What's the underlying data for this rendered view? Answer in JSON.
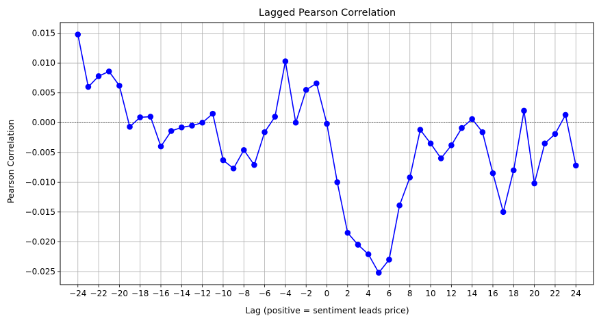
{
  "chart_data": {
    "type": "line",
    "title": "Lagged Pearson Correlation",
    "xlabel": "Lag (positive = sentiment leads price)",
    "ylabel": "Pearson Correlation",
    "xlim": [
      -25.7,
      25.7
    ],
    "ylim": [
      -0.0272,
      0.0168
    ],
    "xticks": [
      -24,
      -22,
      -20,
      -18,
      -16,
      -14,
      -12,
      -10,
      -8,
      -6,
      -4,
      -2,
      0,
      2,
      4,
      6,
      8,
      10,
      12,
      14,
      16,
      18,
      20,
      22,
      24
    ],
    "xtick_labels": [
      "−24",
      "−22",
      "−20",
      "−18",
      "−16",
      "−14",
      "−12",
      "−10",
      "−8",
      "−6",
      "−4",
      "−2",
      "0",
      "2",
      "4",
      "6",
      "8",
      "10",
      "12",
      "14",
      "16",
      "18",
      "20",
      "22",
      "24"
    ],
    "yticks": [
      -0.025,
      -0.02,
      -0.015,
      -0.01,
      -0.005,
      0.0,
      0.005,
      0.01,
      0.015
    ],
    "ytick_labels": [
      "−0.025",
      "−0.020",
      "−0.015",
      "−0.010",
      "−0.005",
      "0.000",
      "0.005",
      "0.010",
      "0.015"
    ],
    "grid": true,
    "reference_line": 0,
    "color": "#0000ff",
    "x": [
      -24,
      -23,
      -22,
      -21,
      -20,
      -19,
      -18,
      -17,
      -16,
      -15,
      -14,
      -13,
      -12,
      -11,
      -10,
      -9,
      -8,
      -7,
      -6,
      -5,
      -4,
      -3,
      -2,
      -1,
      0,
      1,
      2,
      3,
      4,
      5,
      6,
      7,
      8,
      9,
      10,
      11,
      12,
      13,
      14,
      15,
      16,
      17,
      18,
      19,
      20,
      21,
      22,
      23,
      24
    ],
    "y": [
      0.0148,
      0.006,
      0.0078,
      0.0086,
      0.0062,
      -0.0007,
      0.0009,
      0.001,
      -0.004,
      -0.0014,
      -0.0008,
      -0.0005,
      0.0,
      0.0015,
      -0.0063,
      -0.0077,
      -0.0046,
      -0.0071,
      -0.0016,
      0.001,
      0.0103,
      0.0,
      0.0055,
      0.0066,
      -0.0002,
      -0.01,
      -0.0185,
      -0.0205,
      -0.0221,
      -0.0252,
      -0.023,
      -0.0139,
      -0.0092,
      -0.0012,
      -0.0035,
      -0.006,
      -0.0038,
      -0.0009,
      0.0006,
      -0.0016,
      -0.0085,
      -0.015,
      -0.008,
      0.002,
      -0.0102,
      -0.0035,
      -0.0019,
      0.0013,
      -0.0072
    ]
  }
}
